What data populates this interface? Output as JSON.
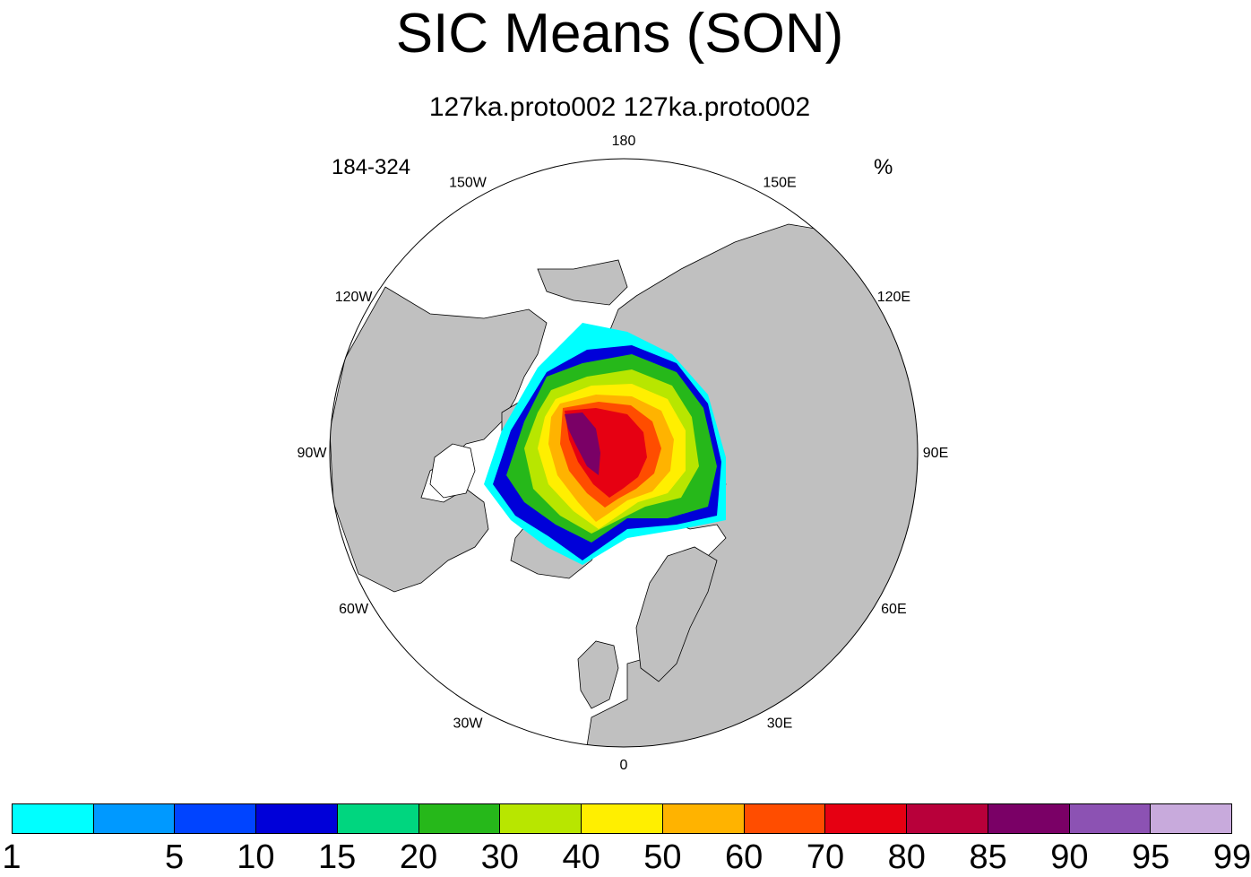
{
  "title": "SIC Means (SON)",
  "subtitle": "127ka.proto002  127ka.proto002",
  "left_string": "184-324",
  "right_string": "%",
  "map": {
    "projection": "north polar stereographic",
    "longitude_labels": [
      "0",
      "30E",
      "60E",
      "90E",
      "120E",
      "150E",
      "180",
      "150W",
      "120W",
      "90W",
      "60W",
      "30W"
    ],
    "land_color": "#c0c0c0",
    "ocean_color": "#ffffff"
  },
  "colorbar": {
    "levels": [
      "1",
      "5",
      "10",
      "15",
      "20",
      "30",
      "40",
      "50",
      "60",
      "70",
      "80",
      "85",
      "90",
      "95",
      "99"
    ],
    "colors": [
      "#00ffff",
      "#0099ff",
      "#0044ff",
      "#0000d9",
      "#00d67f",
      "#26b81a",
      "#b8e600",
      "#ffef00",
      "#ffb300",
      "#ff4d00",
      "#e60012",
      "#b8003a",
      "#7a0066",
      "#8c52b3",
      "#c8aadc"
    ]
  }
}
